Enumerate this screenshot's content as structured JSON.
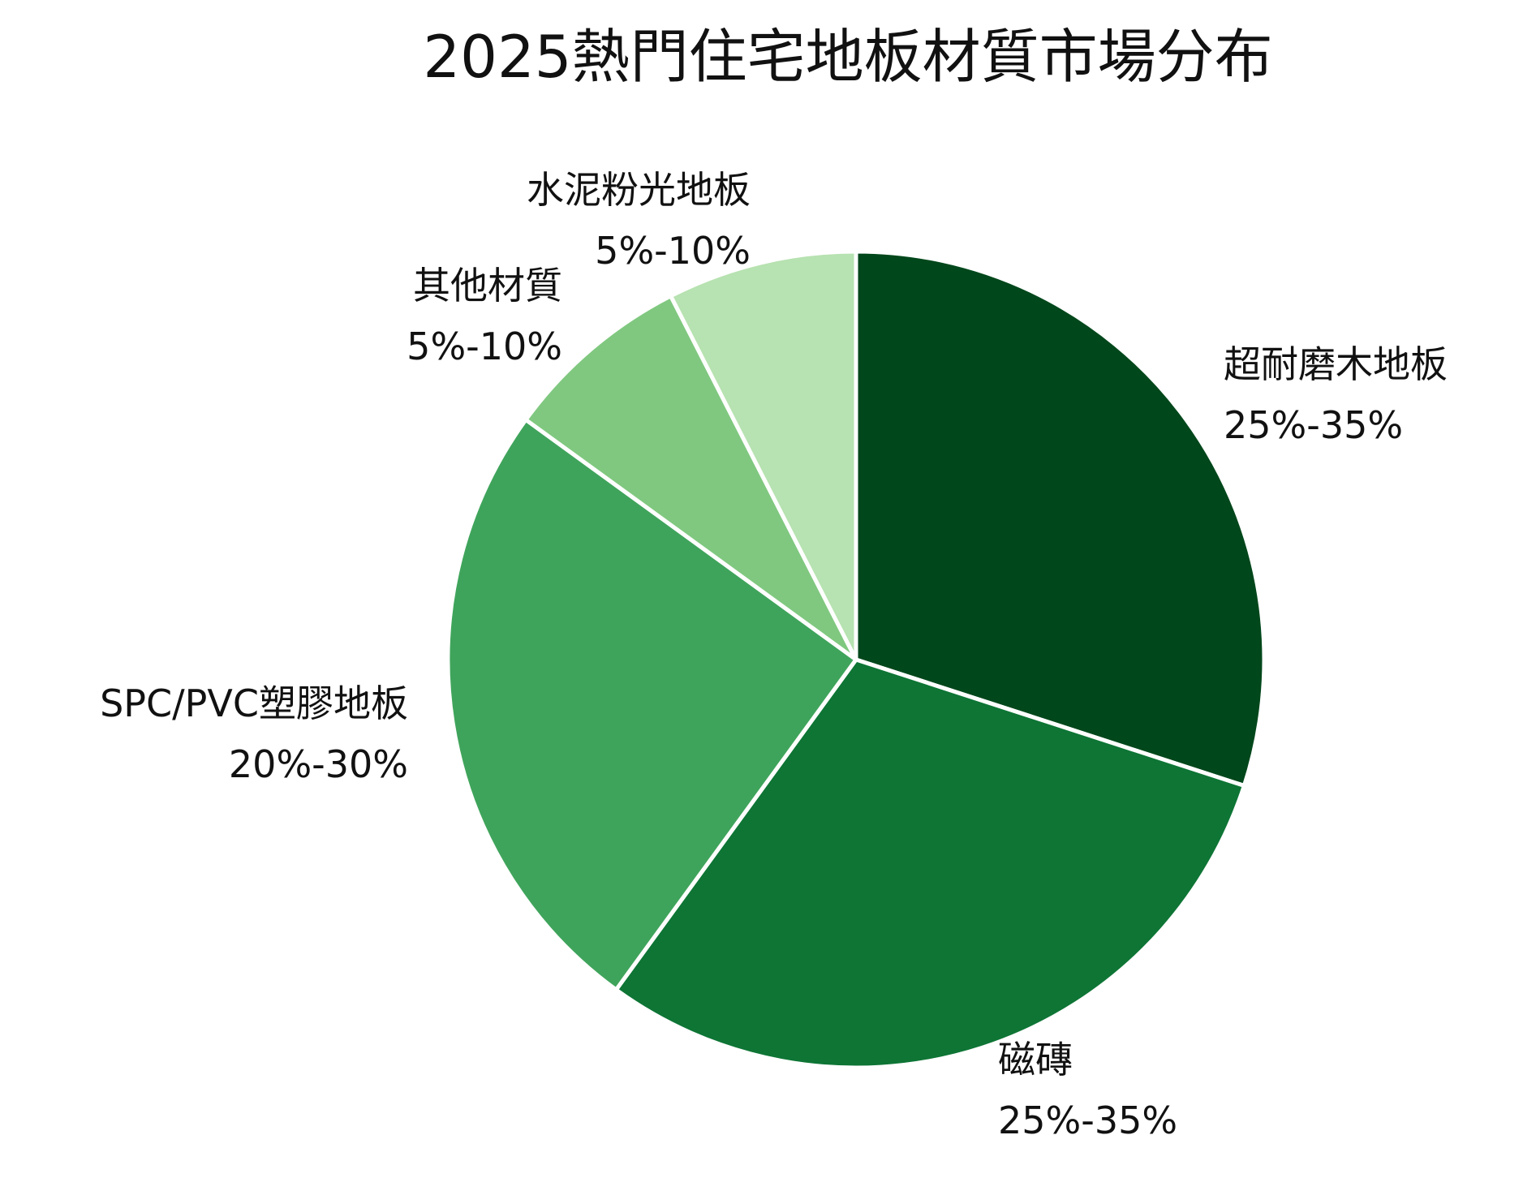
{
  "chart_data": {
    "type": "pie",
    "title": "2025熱門住宅地板材質市場分布",
    "start_angle_deg": 0,
    "direction": "clockwise",
    "slices": [
      {
        "name": "超耐磨木地板",
        "range_label": "25%-35%",
        "value": 30,
        "color": "#00471b"
      },
      {
        "name": "磁磚",
        "range_label": "25%-35%",
        "value": 30,
        "color": "#0e7535"
      },
      {
        "name": "SPC/PVC塑膠地板",
        "range_label": "20%-30%",
        "value": 25,
        "color": "#3fa45b"
      },
      {
        "name": "其他材質",
        "range_label": "5%-10%",
        "value": 7.5,
        "color": "#80c880"
      },
      {
        "name": "水泥粉光地板",
        "range_label": "5%-10%",
        "value": 7.5,
        "color": "#b7e2b1"
      }
    ],
    "legend": "none",
    "labels": "outside"
  }
}
